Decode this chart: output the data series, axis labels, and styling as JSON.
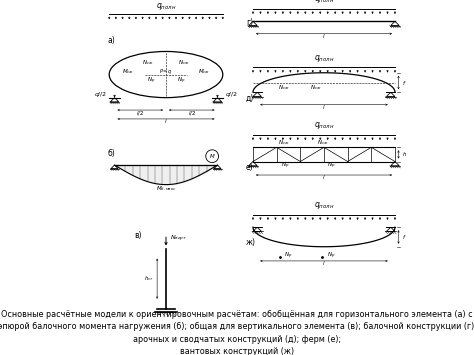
{
  "caption_line1": "Основные расчётные модели к ориентировочным расчётам: обобщённая для горизонтального элемента (а) с",
  "caption_line2": "эпюрой балочного момента нагружения (б); общая для вертикального элемента (в); балочной конструкции (г);",
  "caption_line3": "арочных и сводчатых конструкций (д); ферм (е);",
  "caption_line4": "вантовых конструкций (ж)",
  "bg_color": "#ffffff",
  "text_color": "#000000",
  "line_color": "#000000",
  "fontsize_caption": 5.8,
  "fontsize_label": 5.5
}
